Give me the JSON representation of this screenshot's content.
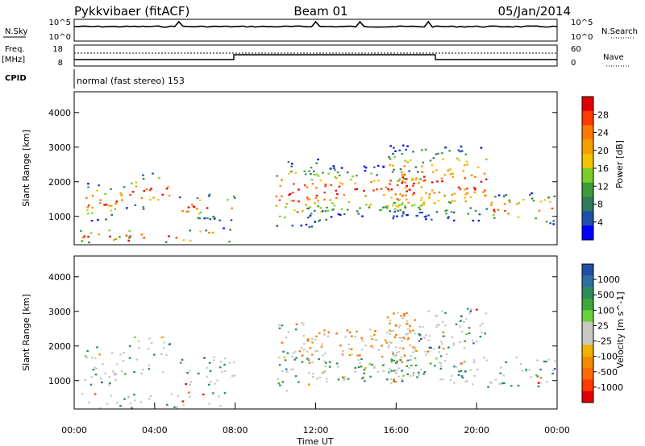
{
  "header": {
    "station": "Pykkvibaer (fitACF)",
    "beam": "Beam 01",
    "date": "05/Jan/2014"
  },
  "strip_nsky": {
    "left_label": "N.Sky",
    "left_ticks": [
      "10^5",
      "10^0"
    ],
    "right_label": "N.Search",
    "right_ticks": [
      "10^5",
      "10^0"
    ]
  },
  "strip_freq": {
    "left_label_1": "Freq.",
    "left_label_2": "[MHz]",
    "left_ticks": [
      "18",
      "8"
    ],
    "right_label": "Nave",
    "right_ticks": [
      "60",
      "0"
    ],
    "cpid_label": "CPID",
    "cpid_text": "normal (fast stereo) 153"
  },
  "chart_data": [
    {
      "type": "heatmap",
      "name": "power",
      "ylabel": "Slant Range [km]",
      "ylim": [
        180,
        4600
      ],
      "yticks": [
        1000,
        2000,
        3000,
        4000
      ],
      "xlim_hours": [
        0,
        24
      ],
      "colorbar": {
        "label": "Power [dB]",
        "ticks": [
          "28",
          "24",
          "20",
          "16",
          "12",
          "8",
          "4"
        ],
        "colors": [
          "#e00000",
          "#ff3a00",
          "#ff7a00",
          "#f5a000",
          "#f2c400",
          "#7ccf2a",
          "#3a9c3a",
          "#2f7a5a",
          "#1f4fa8",
          "#0000ff"
        ]
      }
    },
    {
      "type": "heatmap",
      "name": "velocity",
      "ylabel": "Slant Range [km]",
      "ylim": [
        180,
        4600
      ],
      "yticks": [
        1000,
        2000,
        3000,
        4000
      ],
      "xlim_hours": [
        0,
        24
      ],
      "xlabel": "Time UT",
      "xticks": [
        "00:00",
        "04:00",
        "08:00",
        "12:00",
        "16:00",
        "20:00",
        "00:00"
      ],
      "colorbar": {
        "label": "Velocity [m s^-1]",
        "ticks": [
          "1000",
          "500",
          "100",
          "25",
          "-25",
          "-100",
          "-500",
          "-1000"
        ],
        "colors": [
          "#1f4fa8",
          "#2f6fa0",
          "#2f8a5a",
          "#3aa83a",
          "#6ad23a",
          "#c8c8c0",
          "#c8c8c0",
          "#f2b000",
          "#f58a00",
          "#ff6a00",
          "#ff3a00",
          "#e00000"
        ]
      }
    }
  ]
}
